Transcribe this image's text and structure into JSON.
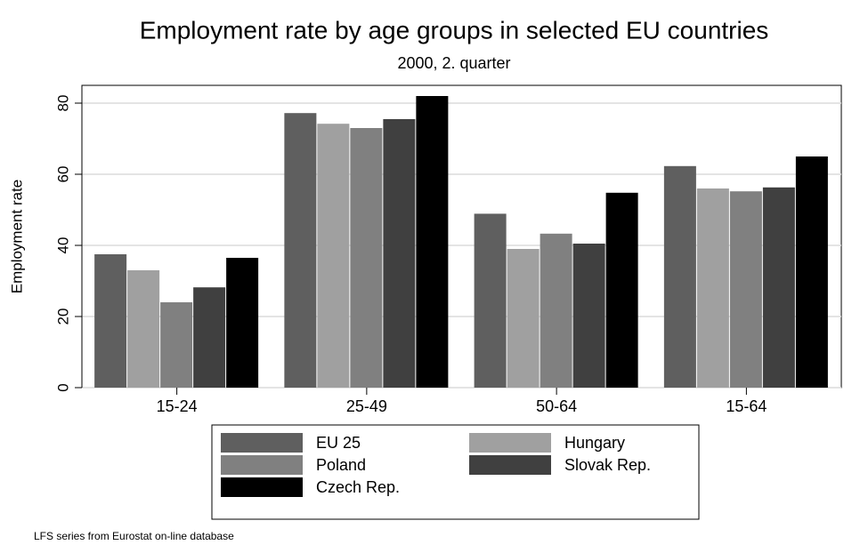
{
  "chart_data": {
    "type": "bar",
    "title": "Employment rate by age groups in selected EU countries",
    "subtitle": "2000, 2. quarter",
    "y_label": "Employment rate",
    "note": "LFS series from Eurostat on-line database",
    "categories": [
      "15-24",
      "25-49",
      "50-64",
      "15-64"
    ],
    "series": [
      {
        "name": "EU 25",
        "color": "#5f5f5f",
        "values": [
          37.5,
          77.2,
          48.9,
          62.3
        ]
      },
      {
        "name": "Hungary",
        "color": "#a0a0a0",
        "values": [
          33,
          74.2,
          39,
          56
        ]
      },
      {
        "name": "Poland",
        "color": "#808080",
        "values": [
          24,
          73,
          43.3,
          55.2
        ]
      },
      {
        "name": "Slovak Rep.",
        "color": "#404040",
        "values": [
          28.2,
          75.5,
          40.5,
          56.3
        ]
      },
      {
        "name": "Czech Rep.",
        "color": "#000000",
        "values": [
          36.5,
          82,
          54.8,
          65
        ]
      }
    ],
    "ylim": [
      0,
      85
    ],
    "yticks": [
      0,
      20,
      40,
      60,
      80
    ],
    "grid": true,
    "legend": "bottom"
  }
}
